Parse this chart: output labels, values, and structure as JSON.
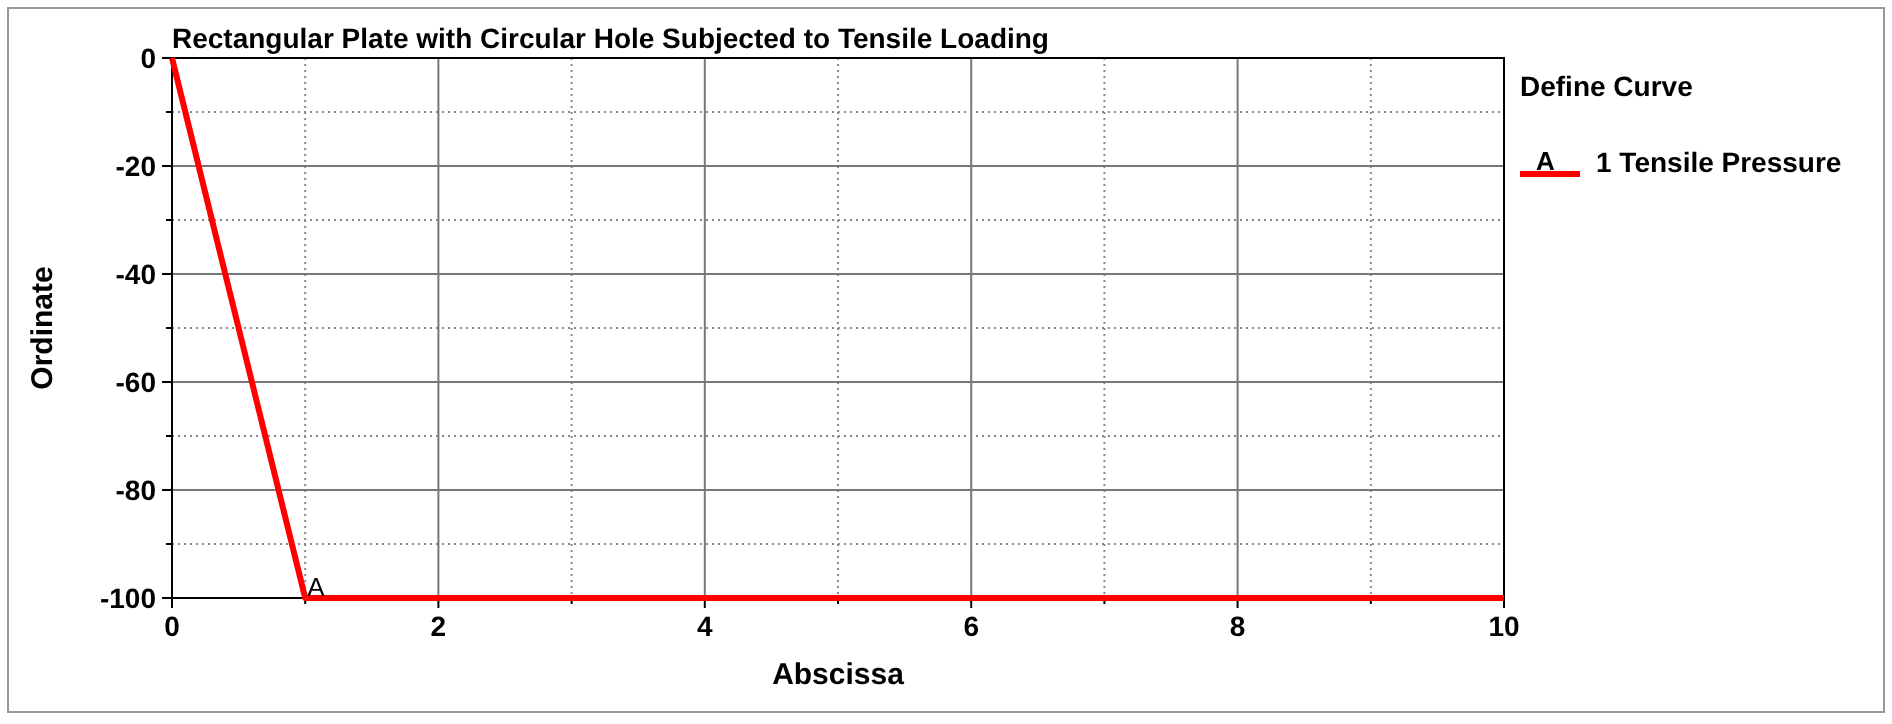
{
  "chart_data": {
    "type": "line",
    "title": "Rectangular Plate with Circular Hole Subjected to Tensile Loading",
    "xlabel": "Abscissa",
    "ylabel": "Ordinate",
    "legend_title": "Define Curve",
    "x": [
      0,
      1,
      10
    ],
    "series": [
      {
        "name": "1 Tensile Pressure",
        "color": "#ff0000",
        "values": [
          0,
          -100,
          -100
        ]
      }
    ],
    "xlim": [
      0,
      10
    ],
    "xticks": [
      0,
      {
        "value": 1,
        "label": null
      },
      2,
      {
        "value": 3,
        "label": null
      },
      4,
      {
        "value": 5,
        "label": null
      },
      6,
      {
        "value": 7,
        "label": null
      },
      8,
      {
        "value": 9,
        "label": null
      },
      10
    ],
    "ylim": [
      -100,
      0
    ],
    "yticks": [
      -100,
      {
        "value": -90,
        "label": null
      },
      -80,
      {
        "value": -70,
        "label": null
      },
      -60,
      {
        "value": -50,
        "label": null
      },
      -40,
      {
        "value": -30,
        "label": null
      },
      -20,
      {
        "value": -10,
        "label": null
      },
      0
    ],
    "annotations": [
      {
        "text": "A",
        "x": 1,
        "y": -100
      }
    ],
    "grid": true,
    "legend": "right",
    "marker": "none",
    "line_style": "solid"
  }
}
